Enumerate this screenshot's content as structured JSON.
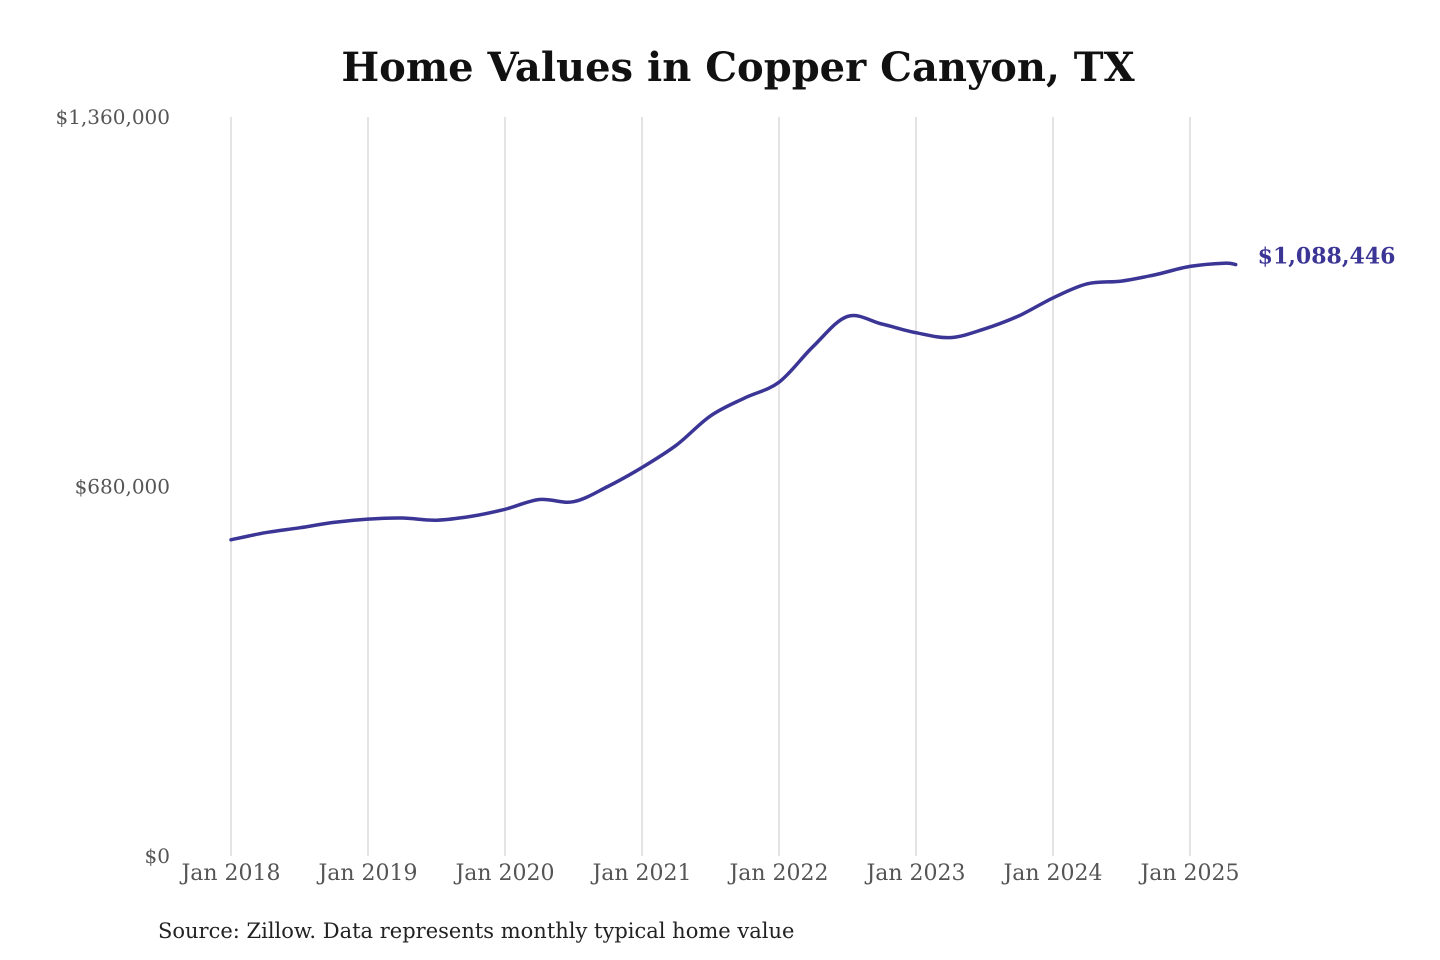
{
  "chart_data": {
    "type": "line",
    "title": "Home Values in Copper Canyon, TX",
    "source_note": "Source: Zillow. Data represents monthly typical home value",
    "xlabel": "",
    "ylabel": "",
    "ylim": [
      0,
      1360000
    ],
    "xlim": [
      "2018-01",
      "2025-05"
    ],
    "y_ticks": [
      {
        "value": 0,
        "label": "$0"
      },
      {
        "value": 680000,
        "label": "$680,000"
      },
      {
        "value": 1360000,
        "label": "$1,360,000"
      }
    ],
    "x_ticks": [
      {
        "value": "2018-01",
        "label": "Jan 2018"
      },
      {
        "value": "2019-01",
        "label": "Jan 2019"
      },
      {
        "value": "2020-01",
        "label": "Jan 2020"
      },
      {
        "value": "2021-01",
        "label": "Jan 2021"
      },
      {
        "value": "2022-01",
        "label": "Jan 2022"
      },
      {
        "value": "2023-01",
        "label": "Jan 2023"
      },
      {
        "value": "2024-01",
        "label": "Jan 2024"
      },
      {
        "value": "2025-01",
        "label": "Jan 2025"
      }
    ],
    "grid": {
      "vertical": true,
      "horizontal": false
    },
    "line_color": "#3b3596",
    "end_label": "$1,088,446",
    "series": [
      {
        "x": [
          "2018-01",
          "2018-04",
          "2018-07",
          "2018-10",
          "2019-01",
          "2019-04",
          "2019-07",
          "2019-10",
          "2020-01",
          "2020-04",
          "2020-07",
          "2020-10",
          "2021-01",
          "2021-04",
          "2021-07",
          "2021-10",
          "2022-01",
          "2022-04",
          "2022-07",
          "2022-10",
          "2023-01",
          "2023-04",
          "2023-07",
          "2023-10",
          "2024-01",
          "2024-04",
          "2024-07",
          "2024-10",
          "2025-01",
          "2025-04",
          "2025-05"
        ],
        "y": [
          582000,
          595000,
          604000,
          614000,
          620000,
          622000,
          618000,
          625000,
          638000,
          656000,
          652000,
          680000,
          715000,
          756000,
          810000,
          843000,
          872000,
          938000,
          993000,
          979000,
          963000,
          954000,
          970000,
          994000,
          1027000,
          1053000,
          1058000,
          1070000,
          1085000,
          1091000,
          1088446
        ]
      }
    ]
  }
}
